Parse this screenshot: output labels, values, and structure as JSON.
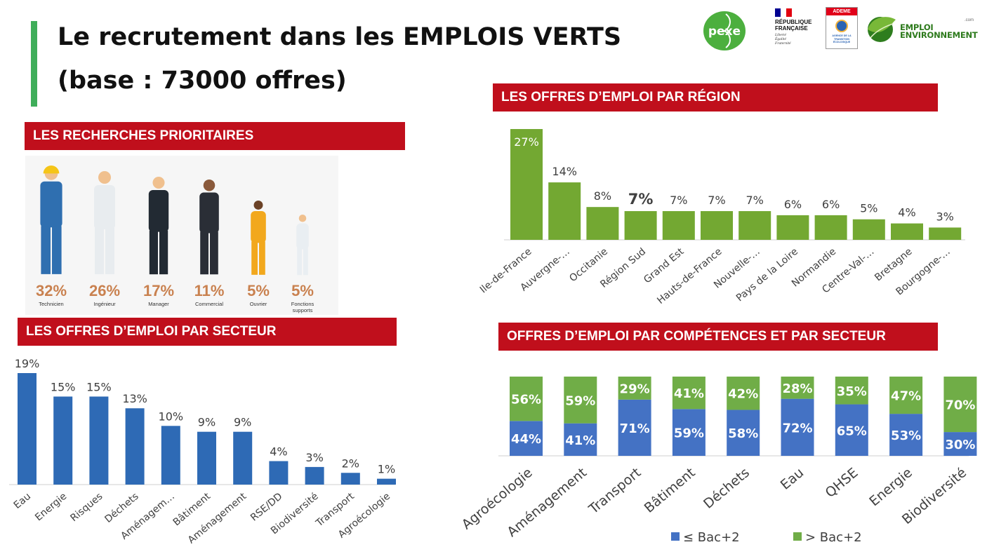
{
  "title": {
    "line1": "Le recrutement dans les EMPLOIS VERTS",
    "line2": "(base : 73000 offres)"
  },
  "colors": {
    "header_red": "#c00f1c",
    "accent_green": "#3fae5a",
    "sector_blue": "#2e6ab5",
    "region_green": "#73a832",
    "low_bac_blue": "#4472c4",
    "high_bac_green": "#70ad47",
    "profile_orange": "#c9814f"
  },
  "logos": {
    "pexe": "pexe",
    "rf_lines": [
      "RÉPUBLIQUE",
      "FRANÇAISE"
    ],
    "rf_motto": [
      "Liberté",
      "Égalité",
      "Fraternité"
    ],
    "ademe": "ADEME",
    "ademe_sub": "AGENCE DE LA TRANSITION ÉCOLOGIQUE",
    "emploi_line1": "EMPLOI",
    "emploi_line2": "ENVIRONNEMENT",
    "emploi_com": ".com"
  },
  "headers": {
    "prioritaires": "LES RECHERCHES PRIORITAIRES",
    "secteur": "LES OFFRES D’EMPLOI PAR SECTEUR",
    "region": "LES OFFRES D’EMPLOI PAR RÉGION",
    "competences": "OFFRES D’EMPLOI PAR COMPÉTENCES ET PAR SECTEUR"
  },
  "profiles": [
    {
      "pct": "32%",
      "label": "Technicien",
      "icon": "technician-person-icon"
    },
    {
      "pct": "26%",
      "label": "Ingénieur",
      "icon": "engineer-person-icon"
    },
    {
      "pct": "17%",
      "label": "Manager",
      "icon": "manager-person-icon"
    },
    {
      "pct": "11%",
      "label": "Commercial",
      "icon": "salesperson-person-icon"
    },
    {
      "pct": "5%",
      "label": "Ouvrier",
      "icon": "worker-person-icon"
    },
    {
      "pct": "5%",
      "label": "Fonctions supports",
      "icon": "support-person-icon"
    }
  ],
  "chart_data": [
    {
      "id": "secteur",
      "type": "bar",
      "categories": [
        "Eau",
        "Energie",
        "Risques",
        "Déchets",
        "Aménagem…",
        "Bâtiment",
        "Aménagement",
        "RSE/DD",
        "Biodiversité",
        "Transport",
        "Agroécologie"
      ],
      "values": [
        19,
        15,
        15,
        13,
        10,
        9,
        9,
        4,
        3,
        2,
        1
      ],
      "labels": [
        "19%",
        "15%",
        "15%",
        "13%",
        "10%",
        "9%",
        "9%",
        "4%",
        "3%",
        "2%",
        "1%"
      ],
      "ylim": [
        0,
        19
      ]
    },
    {
      "id": "region",
      "type": "bar",
      "categories": [
        "Ile-de-France",
        "Auvergne-…",
        "Occitanie",
        "Région Sud",
        "Grand Est",
        "Hauts-de-France",
        "Nouvelle-…",
        "Pays de la Loire",
        "Normandie",
        "Centre-Val-…",
        "Bretagne",
        "Bourgogne-…"
      ],
      "values": [
        27,
        14,
        8,
        7,
        7,
        7,
        7,
        6,
        6,
        5,
        4,
        3
      ],
      "labels": [
        "27%",
        "14%",
        "8%",
        "7%",
        "7%",
        "7%",
        "7%",
        "6%",
        "6%",
        "5%",
        "4%",
        "3%"
      ],
      "label_placement": [
        "inside",
        "above",
        "above",
        "above",
        "above",
        "above",
        "above",
        "above",
        "above",
        "above",
        "above",
        "above"
      ],
      "bold_labels": [
        false,
        false,
        false,
        true,
        false,
        false,
        false,
        false,
        false,
        false,
        false,
        false
      ],
      "ylim": [
        0,
        27
      ]
    },
    {
      "id": "competences",
      "type": "bar",
      "stacked": true,
      "percent": true,
      "categories": [
        "Agroécologie",
        "Aménagement",
        "Transport",
        "Bâtiment",
        "Déchets",
        "Eau",
        "QHSE",
        "Energie",
        "Biodiversité"
      ],
      "series": [
        {
          "name": "≤ Bac+2",
          "values": [
            44,
            41,
            71,
            59,
            58,
            72,
            65,
            53,
            30
          ],
          "labels": [
            "44%",
            "41%",
            "71%",
            "59%",
            "58%",
            "72%",
            "65%",
            "53%",
            "30%"
          ]
        },
        {
          "name": "> Bac+2",
          "values": [
            56,
            59,
            29,
            41,
            42,
            28,
            35,
            47,
            70
          ],
          "labels": [
            "56%",
            "59%",
            "29%",
            "41%",
            "42%",
            "28%",
            "35%",
            "47%",
            "70%"
          ]
        }
      ],
      "legend": "bottom",
      "ylim": [
        0,
        100
      ]
    }
  ]
}
